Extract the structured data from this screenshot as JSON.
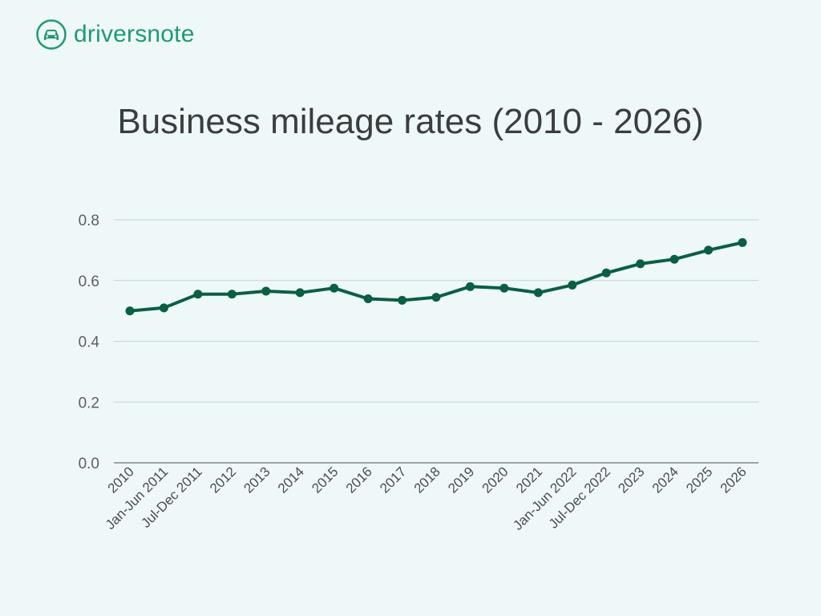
{
  "brand": {
    "name": "driversnote",
    "logo_icon": "car-icon",
    "color": "#1f9a6e"
  },
  "chart_data": {
    "type": "line",
    "title": "Business mileage rates (2010 - 2026)",
    "xlabel": "",
    "ylabel": "",
    "ylim": [
      0,
      0.8
    ],
    "yticks": [
      "0.0",
      "0.2",
      "0.4",
      "0.6",
      "0.8"
    ],
    "grid": true,
    "categories": [
      "2010",
      "Jan-Jun 2011",
      "Jul-Dec 2011",
      "2012",
      "2013",
      "2014",
      "2015",
      "2016",
      "2017",
      "2018",
      "2019",
      "2020",
      "2021",
      "Jan-Jun 2022",
      "Jul-Dec 2022",
      "2023",
      "2024",
      "2025",
      "2026"
    ],
    "series": [
      {
        "name": "Business mileage rate",
        "color": "#0b5e44",
        "values": [
          0.5,
          0.51,
          0.555,
          0.555,
          0.565,
          0.56,
          0.575,
          0.54,
          0.535,
          0.545,
          0.58,
          0.575,
          0.56,
          0.585,
          0.625,
          0.655,
          0.67,
          0.7,
          0.725
        ]
      }
    ]
  }
}
